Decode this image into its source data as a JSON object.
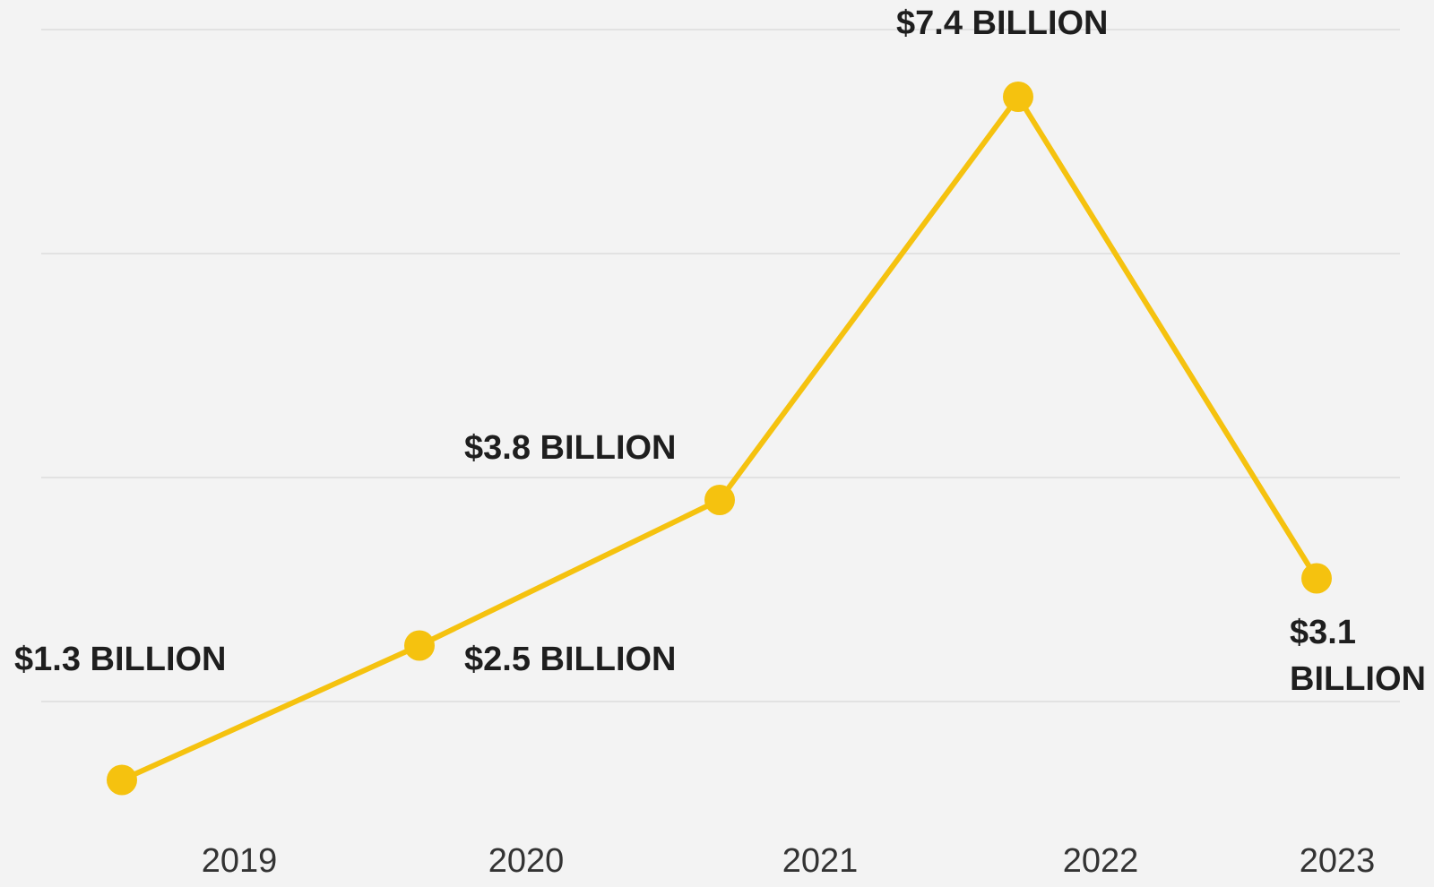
{
  "chart_data": {
    "type": "line",
    "categories": [
      "2019",
      "2020",
      "2021",
      "2022",
      "2023"
    ],
    "series": [
      {
        "color": "#f5c20f",
        "values": [
          1.3,
          2.5,
          3.8,
          7.4,
          3.1
        ],
        "value_labels": [
          "$1.3 BILLION",
          "$2.5 BILLION",
          "$3.8 BILLION",
          "$7.4 BILLION",
          "$3.1 BILLION"
        ]
      }
    ],
    "ylim": [
      1,
      8
    ],
    "yticks": [
      2,
      4,
      6,
      8
    ],
    "grid": true
  }
}
